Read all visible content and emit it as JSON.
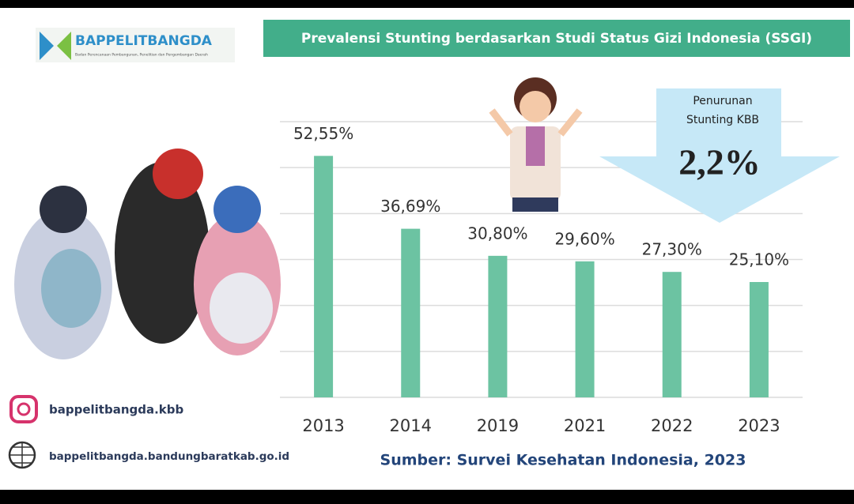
{
  "header": {
    "logo": "BAPPELITBANGDA",
    "logo_subtitle": "Badan Perencanaan Pembangunan, Penelitian dan Pengembangan Daerah"
  },
  "chart_data": {
    "type": "bar",
    "title": "Prevalensi Stunting berdasarkan Studi Status Gizi Indonesia (SSGI)",
    "categories": [
      "2013",
      "2014",
      "2019",
      "2021",
      "2022",
      "2023"
    ],
    "values": [
      52.55,
      36.69,
      30.8,
      29.6,
      27.3,
      25.1
    ],
    "value_labels": [
      "52,55%",
      "36,69%",
      "30,80%",
      "29,60%",
      "27,30%",
      "25,10%"
    ],
    "color": "#6cc3a2",
    "ylim": [
      0,
      60
    ],
    "grid": true
  },
  "annotation": {
    "label": "Penurunan Stunting KBB",
    "value": "2,2%"
  },
  "footer": {
    "instagram": "bappelitbangda.kbb",
    "website": "bappelitbangda.bandungbaratkab.go.id",
    "source": "Sumber: Survei Kesehatan Indonesia, 2023"
  }
}
